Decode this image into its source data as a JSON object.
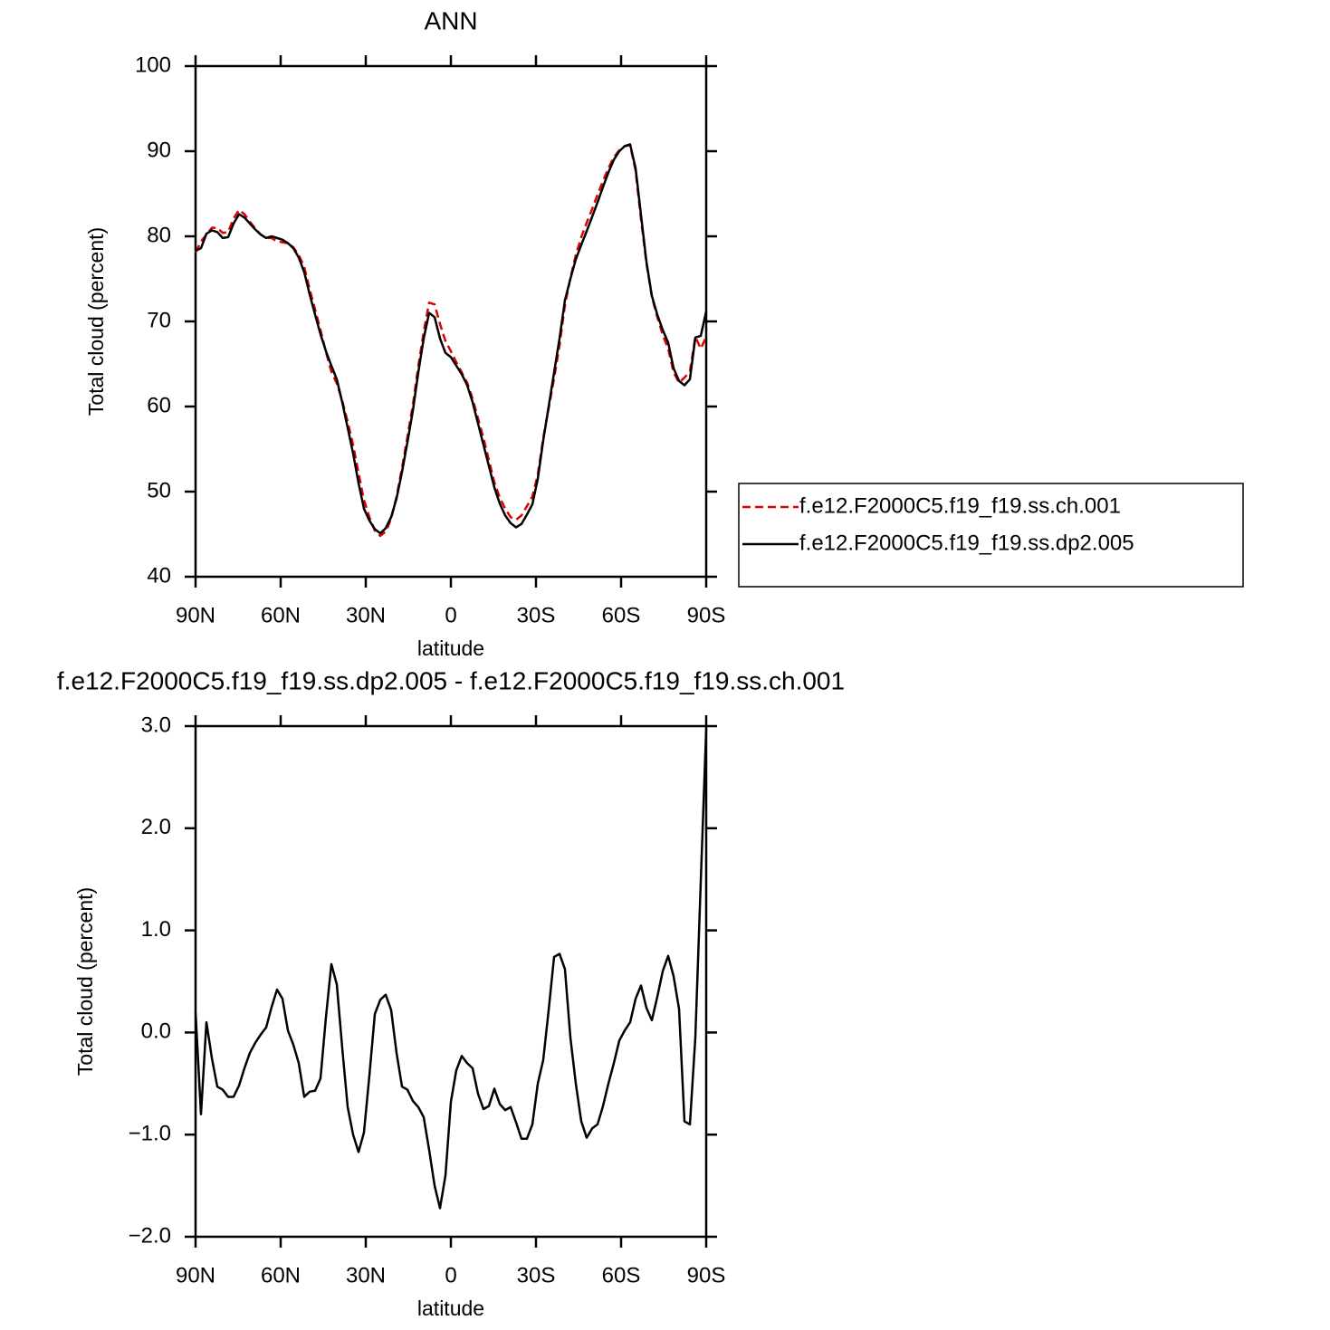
{
  "chart_data": [
    {
      "type": "line",
      "title": "ANN",
      "xlabel": "latitude",
      "ylabel": "Total cloud (percent)",
      "x": [
        90.0,
        88.09,
        86.17,
        84.26,
        82.34,
        80.43,
        78.51,
        76.6,
        74.68,
        72.77,
        70.85,
        68.94,
        67.02,
        65.11,
        63.19,
        61.28,
        59.36,
        57.45,
        55.53,
        53.62,
        51.7,
        49.79,
        47.87,
        45.96,
        44.04,
        42.13,
        40.21,
        38.3,
        36.38,
        34.47,
        32.55,
        30.64,
        28.72,
        26.81,
        24.89,
        22.98,
        21.06,
        19.15,
        17.23,
        15.32,
        13.4,
        11.49,
        9.57,
        7.66,
        5.74,
        3.83,
        1.91,
        0,
        -1.91,
        -3.83,
        -5.74,
        -7.66,
        -9.57,
        -11.49,
        -13.4,
        -15.32,
        -17.23,
        -19.15,
        -21.06,
        -22.98,
        -24.89,
        -26.81,
        -28.72,
        -30.64,
        -32.55,
        -34.47,
        -36.38,
        -38.3,
        -40.21,
        -42.13,
        -44.04,
        -45.96,
        -47.87,
        -49.79,
        -51.7,
        -53.62,
        -55.53,
        -57.45,
        -59.36,
        -61.28,
        -63.19,
        -65.11,
        -67.02,
        -68.94,
        -70.85,
        -72.77,
        -74.68,
        -76.6,
        -78.51,
        -80.43,
        -82.34,
        -84.26,
        -86.17,
        -88.09,
        -90.0
      ],
      "series": [
        {
          "name": "f.e12.F2000C5.f19_f19.ss.ch.001",
          "color": "#e00000",
          "dashed": true,
          "values": [
            78.1,
            79.4,
            80.2,
            81.0,
            81.0,
            80.4,
            80.5,
            82.1,
            83.1,
            82.6,
            81.7,
            80.9,
            80.2,
            79.8,
            79.8,
            79.4,
            79.3,
            79.2,
            78.7,
            77.8,
            76.4,
            73.8,
            71.4,
            69.0,
            66.4,
            64.1,
            62.7,
            60.7,
            58.2,
            55.5,
            52.2,
            49.0,
            47.0,
            45.4,
            44.8,
            45.3,
            46.8,
            49.4,
            52.8,
            56.4,
            60.2,
            64.7,
            68.8,
            72.2,
            72.0,
            69.7,
            67.7,
            66.5,
            65.2,
            64.0,
            62.8,
            60.9,
            58.6,
            56.3,
            53.7,
            51.1,
            49.3,
            48.0,
            47.0,
            46.7,
            47.2,
            48.3,
            49.4,
            52.0,
            56.3,
            59.8,
            63.3,
            67.2,
            71.9,
            75.1,
            77.8,
            79.9,
            81.6,
            83.2,
            84.9,
            86.5,
            88.0,
            89.3,
            90.1,
            90.6,
            90.7,
            87.7,
            82.0,
            76.8,
            72.9,
            70.5,
            68.4,
            66.8,
            64.0,
            62.8,
            63.4,
            64.1,
            68.2,
            66.8,
            68.2
          ]
        },
        {
          "name": "f.e12.F2000C5.f19_f19.ss.dp2.005",
          "color": "#000000",
          "dashed": false,
          "values": [
            78.3,
            78.6,
            80.3,
            80.7,
            80.5,
            79.8,
            79.9,
            81.5,
            82.6,
            82.2,
            81.5,
            80.8,
            80.2,
            79.8,
            80.0,
            79.8,
            79.6,
            79.2,
            78.6,
            77.5,
            75.8,
            73.2,
            70.8,
            68.5,
            66.5,
            64.8,
            63.2,
            60.5,
            57.5,
            54.5,
            51.0,
            48.0,
            46.6,
            45.6,
            45.1,
            45.7,
            47.0,
            49.2,
            52.3,
            55.8,
            59.5,
            64.0,
            68.0,
            71.0,
            70.5,
            68.0,
            66.3,
            65.8,
            64.8,
            63.8,
            62.5,
            60.5,
            58.0,
            55.5,
            53.0,
            50.5,
            48.6,
            47.2,
            46.3,
            45.8,
            46.2,
            47.3,
            48.5,
            51.5,
            56.0,
            60.0,
            64.0,
            68.0,
            72.5,
            75.0,
            77.3,
            79.0,
            80.6,
            82.3,
            84.0,
            85.8,
            87.5,
            89.0,
            90.0,
            90.6,
            90.8,
            88.0,
            82.5,
            77.0,
            73.0,
            70.8,
            69.0,
            67.5,
            64.5,
            63.0,
            62.5,
            63.2,
            68.1,
            68.3,
            71.2
          ]
        }
      ],
      "xlim": [
        90,
        -90
      ],
      "xticks": [
        {
          "value": 90,
          "label": "90N"
        },
        {
          "value": 60,
          "label": "60N"
        },
        {
          "value": 30,
          "label": "30N"
        },
        0,
        {
          "value": -30,
          "label": "30S"
        },
        {
          "value": -60,
          "label": "60S"
        },
        {
          "value": -90,
          "label": "90S"
        }
      ],
      "ylim": [
        40,
        100
      ],
      "yticks": [
        40,
        50,
        60,
        70,
        80,
        90,
        100
      ],
      "legend": "outside-right"
    },
    {
      "type": "line",
      "title": "f.e12.F2000C5.f19_f19.ss.dp2.005 - f.e12.F2000C5.f19_f19.ss.ch.001",
      "xlabel": "latitude",
      "ylabel": "Total cloud (percent)",
      "x": [
        90.0,
        88.09,
        86.17,
        84.26,
        82.34,
        80.43,
        78.51,
        76.6,
        74.68,
        72.77,
        70.85,
        68.94,
        67.02,
        65.11,
        63.19,
        61.28,
        59.36,
        57.45,
        55.53,
        53.62,
        51.7,
        49.79,
        47.87,
        45.96,
        44.04,
        42.13,
        40.21,
        38.3,
        36.38,
        34.47,
        32.55,
        30.64,
        28.72,
        26.81,
        24.89,
        22.98,
        21.06,
        19.15,
        17.23,
        15.32,
        13.4,
        11.49,
        9.57,
        7.66,
        5.74,
        3.83,
        1.91,
        0,
        -1.91,
        -3.83,
        -5.74,
        -7.66,
        -9.57,
        -11.49,
        -13.4,
        -15.32,
        -17.23,
        -19.15,
        -21.06,
        -22.98,
        -24.89,
        -26.81,
        -28.72,
        -30.64,
        -32.55,
        -34.47,
        -36.38,
        -38.3,
        -40.21,
        -42.13,
        -44.04,
        -45.96,
        -47.87,
        -49.79,
        -51.7,
        -53.62,
        -55.53,
        -57.45,
        -59.36,
        -61.28,
        -63.19,
        -65.11,
        -67.02,
        -68.94,
        -70.85,
        -72.77,
        -74.68,
        -76.6,
        -78.51,
        -80.43,
        -82.34,
        -84.26,
        -86.17,
        -88.09,
        -90.0
      ],
      "color": "#000000",
      "values": [
        0.2,
        -0.8,
        0.1,
        -0.25,
        -0.53,
        -0.56,
        -0.63,
        -0.63,
        -0.52,
        -0.35,
        -0.2,
        -0.1,
        -0.02,
        0.05,
        0.25,
        0.42,
        0.33,
        0.02,
        -0.12,
        -0.3,
        -0.63,
        -0.58,
        -0.57,
        -0.45,
        0.15,
        0.67,
        0.47,
        -0.15,
        -0.73,
        -1.0,
        -1.17,
        -0.98,
        -0.42,
        0.18,
        0.32,
        0.37,
        0.22,
        -0.2,
        -0.53,
        -0.56,
        -0.67,
        -0.73,
        -0.83,
        -1.15,
        -1.5,
        -1.72,
        -1.4,
        -0.68,
        -0.37,
        -0.23,
        -0.3,
        -0.35,
        -0.6,
        -0.75,
        -0.72,
        -0.55,
        -0.7,
        -0.76,
        -0.73,
        -0.88,
        -1.04,
        -1.04,
        -0.9,
        -0.5,
        -0.27,
        0.22,
        0.74,
        0.77,
        0.62,
        -0.05,
        -0.5,
        -0.87,
        -1.03,
        -0.94,
        -0.9,
        -0.72,
        -0.5,
        -0.3,
        -0.08,
        0.02,
        0.1,
        0.33,
        0.46,
        0.24,
        0.12,
        0.35,
        0.6,
        0.75,
        0.55,
        0.23,
        -0.87,
        -0.9,
        -0.05,
        1.48,
        2.97
      ],
      "xlim": [
        90,
        -90
      ],
      "xticks": [
        {
          "value": 90,
          "label": "90N"
        },
        {
          "value": 60,
          "label": "60N"
        },
        {
          "value": 30,
          "label": "30N"
        },
        0,
        {
          "value": -30,
          "label": "30S"
        },
        {
          "value": -60,
          "label": "60S"
        },
        {
          "value": -90,
          "label": "90S"
        }
      ],
      "ylim": [
        -2,
        3
      ],
      "yticks": [
        {
          "value": -2,
          "label": "−2.0"
        },
        {
          "value": -1,
          "label": "−1.0"
        },
        {
          "value": 0,
          "label": "0.0"
        },
        {
          "value": 1,
          "label": "1.0"
        },
        {
          "value": 2,
          "label": "2.0"
        },
        {
          "value": 3,
          "label": "3.0"
        }
      ]
    }
  ]
}
